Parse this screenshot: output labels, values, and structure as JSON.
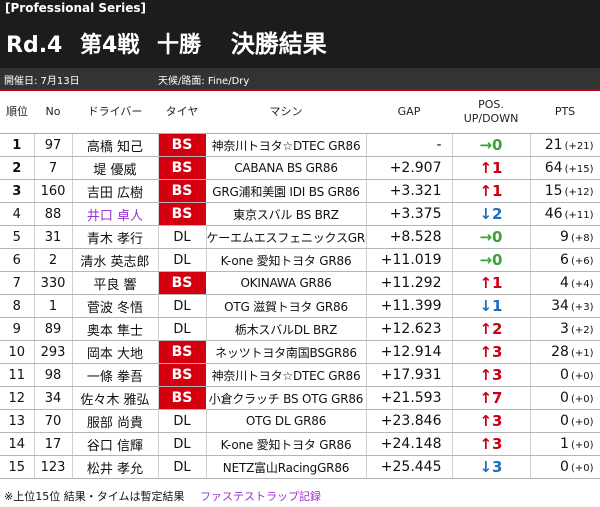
{
  "header": {
    "series": "[Professional Series]",
    "round": "Rd.4",
    "race": "第4戦",
    "venue": "十勝",
    "result": "決勝結果"
  },
  "info": {
    "date": "開催日: 7月13日",
    "weather": "天候/路面: Fine/Dry"
  },
  "columns": [
    "順位",
    "No",
    "ドライバー",
    "タイヤ",
    "マシン",
    "GAP",
    "POS.\nUP/DOWN",
    "PTS"
  ],
  "rows": [
    {
      "pos": "1",
      "no": "97",
      "driver": "高橋 知己",
      "tire": "BS",
      "machine": "神奈川トヨタ☆DTEC GR86",
      "gap": "-",
      "updown": "→0",
      "pts": "21",
      "bonus": "(+21)"
    },
    {
      "pos": "2",
      "no": "7",
      "driver": "堤 優威",
      "tire": "BS",
      "machine": "CABANA BS GR86",
      "gap": "+2.907",
      "updown": "↑1",
      "pts": "64",
      "bonus": "(+15)"
    },
    {
      "pos": "3",
      "no": "160",
      "driver": "吉田 広樹",
      "tire": "BS",
      "machine": "GRG浦和美園 IDI BS GR86",
      "gap": "+3.321",
      "updown": "↑1",
      "pts": "15",
      "bonus": "(+12)"
    },
    {
      "pos": "4",
      "no": "88",
      "driver": "井口 卓人",
      "tire": "BS",
      "machine": "東京スバル BS BRZ",
      "gap": "+3.375",
      "updown": "↓2",
      "pts": "46",
      "bonus": "(+11)"
    },
    {
      "pos": "5",
      "no": "31",
      "driver": "青木 孝行",
      "tire": "DL",
      "machine": "ケーエムエスフェニックスGR86",
      "gap": "+8.528",
      "updown": "→0",
      "pts": "9",
      "bonus": "(+8)"
    },
    {
      "pos": "6",
      "no": "2",
      "driver": "清水 英志郎",
      "tire": "DL",
      "machine": "K-one 愛知トヨタ GR86",
      "gap": "+11.019",
      "updown": "→0",
      "pts": "6",
      "bonus": "(+6)"
    },
    {
      "pos": "7",
      "no": "330",
      "driver": "平良 響",
      "tire": "BS",
      "machine": "OKINAWA GR86",
      "gap": "+11.292",
      "updown": "↑1",
      "pts": "4",
      "bonus": "(+4)"
    },
    {
      "pos": "8",
      "no": "1",
      "driver": "菅波 冬悟",
      "tire": "DL",
      "machine": "OTG 滋賀トヨタ GR86",
      "gap": "+11.399",
      "updown": "↓1",
      "pts": "34",
      "bonus": "(+3)"
    },
    {
      "pos": "9",
      "no": "89",
      "driver": "奥本 隼士",
      "tire": "DL",
      "machine": "栃木スバルDL BRZ",
      "gap": "+12.623",
      "updown": "↑2",
      "pts": "3",
      "bonus": "(+2)"
    },
    {
      "pos": "10",
      "no": "293",
      "driver": "岡本 大地",
      "tire": "BS",
      "machine": "ネッツトヨタ南国BSGR86",
      "gap": "+12.914",
      "updown": "↑3",
      "pts": "28",
      "bonus": "(+1)"
    },
    {
      "pos": "11",
      "no": "98",
      "driver": "一條 拳吾",
      "tire": "BS",
      "machine": "神奈川トヨタ☆DTEC GR86",
      "gap": "+17.931",
      "updown": "↑3",
      "pts": "0",
      "bonus": "(+0)"
    },
    {
      "pos": "12",
      "no": "34",
      "driver": "佐々木 雅弘",
      "tire": "BS",
      "machine": "小倉クラッチ BS OTG GR86",
      "gap": "+21.593",
      "updown": "↑7",
      "pts": "0",
      "bonus": "(+0)"
    },
    {
      "pos": "13",
      "no": "70",
      "driver": "服部 尚貴",
      "tire": "DL",
      "machine": "OTG DL GR86",
      "gap": "+23.846",
      "updown": "↑3",
      "pts": "0",
      "bonus": "(+0)"
    },
    {
      "pos": "14",
      "no": "17",
      "driver": "谷口 信輝",
      "tire": "DL",
      "machine": "K-one 愛知トヨタ GR86",
      "gap": "+24.148",
      "updown": "↑3",
      "pts": "1",
      "bonus": "(+0)"
    },
    {
      "pos": "15",
      "no": "123",
      "driver": "松井 孝允",
      "tire": "DL",
      "machine": "NETZ富山RacingGR86",
      "gap": "+25.445",
      "updown": "↓3",
      "pts": "0",
      "bonus": "(+0)"
    }
  ],
  "fastest_lap_row": 4,
  "footer": {
    "note": "※上位15位  結果・タイムは暫定結果",
    "fastest": "ファステストラップ記録"
  },
  "colors": {
    "bs_red": "#d4000f",
    "up_red": "#cc0010",
    "down_blue": "#1a6fc4",
    "flat_green": "#3aa335",
    "fastest_purple": "#9933cc"
  }
}
